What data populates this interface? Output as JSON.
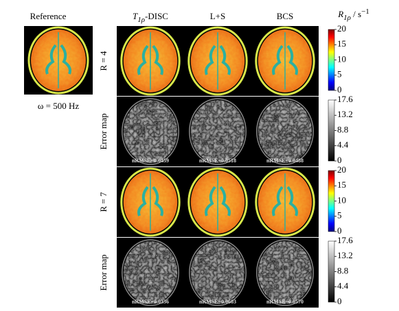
{
  "reference": {
    "label": "Reference",
    "caption": "ω = 500 Hz"
  },
  "columns": [
    {
      "symbol": "T",
      "subscript": "1ρ",
      "rest": "-DISC"
    },
    {
      "symbol": "L+S"
    },
    {
      "symbol": "BCS"
    }
  ],
  "colorbar_label": {
    "symbol": "R",
    "subscript": "1ρ",
    "rest": " / s",
    "superscript": "−1"
  },
  "rows": [
    {
      "label": "R = 4",
      "kind": "map",
      "ticks": [
        20,
        15,
        10,
        5,
        0
      ]
    },
    {
      "label": "Error map",
      "kind": "error",
      "ticks": [
        17.6,
        13.2,
        8.8,
        4.4,
        0
      ],
      "nrmse": [
        "nRMSE=0.0459",
        "nRMSE=0.0518",
        "nRMSE=0.0488"
      ]
    },
    {
      "label": "R = 7",
      "kind": "map",
      "ticks": [
        20,
        15,
        10,
        5,
        0
      ]
    },
    {
      "label": "Error map",
      "kind": "error",
      "ticks": [
        17.6,
        13.2,
        8.8,
        4.4,
        0
      ],
      "nrmse": [
        "nRMSE=0.0336",
        "nRMSE=0.0603",
        "nRMSE=0.0570"
      ]
    }
  ]
}
